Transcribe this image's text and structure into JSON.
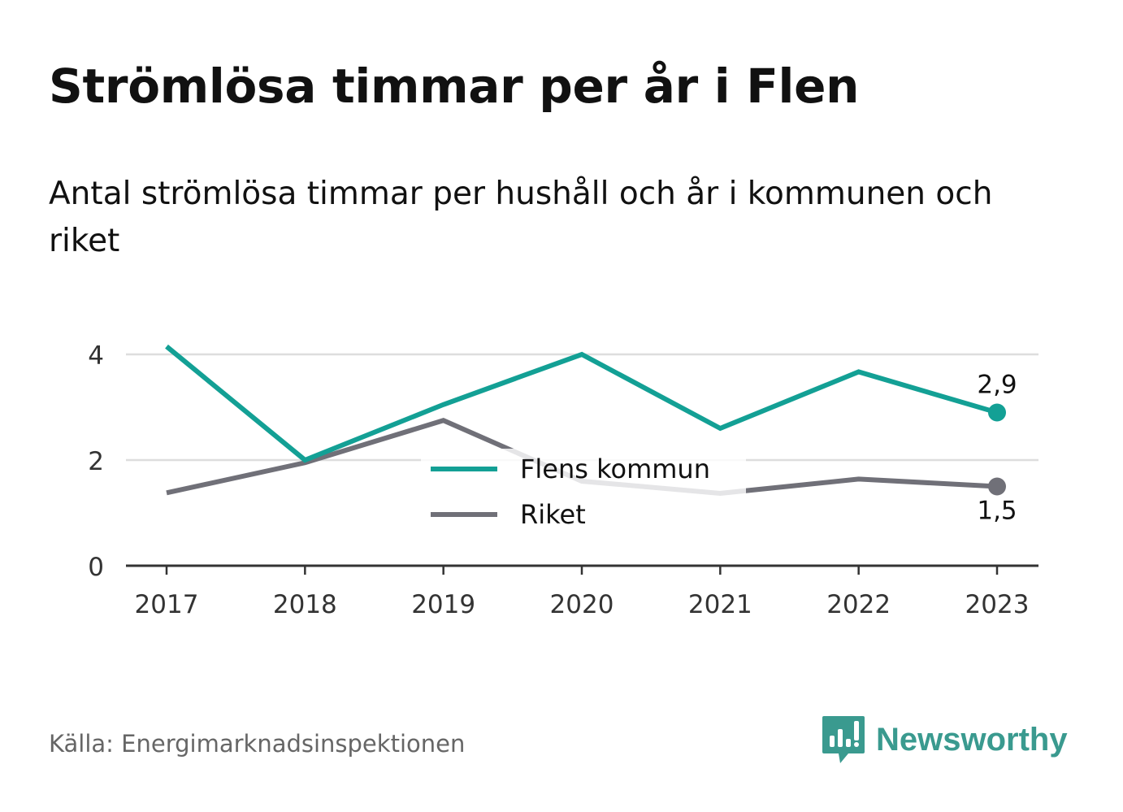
{
  "title": "Strömlösa timmar per år i Flen",
  "subtitle": "Antal strömlösa timmar per hushåll och år i kommunen och riket",
  "source": "Källa: Energimarknadsinspektionen",
  "brand": {
    "name": "Newsworthy",
    "icon": "newsworthy-logo-icon",
    "color": "#3a9a8f"
  },
  "chart_data": {
    "type": "line",
    "x": [
      "2017",
      "2018",
      "2019",
      "2020",
      "2021",
      "2022",
      "2023"
    ],
    "ylim": [
      0,
      4.5
    ],
    "yticks": [
      {
        "value": 0,
        "label": "0"
      },
      {
        "value": 2,
        "label": "2"
      },
      {
        "value": 4,
        "label": "4"
      }
    ],
    "grid": true,
    "legend": "center",
    "series": [
      {
        "name": "Flens kommun",
        "color": "#13a095",
        "values": [
          4.15,
          2.0,
          3.05,
          4.0,
          2.6,
          3.67,
          2.9
        ],
        "end_label": "2,9"
      },
      {
        "name": "Riket",
        "color": "#707078",
        "values": [
          1.38,
          1.95,
          2.75,
          1.6,
          1.37,
          1.64,
          1.5
        ],
        "end_label": "1,5"
      }
    ]
  }
}
